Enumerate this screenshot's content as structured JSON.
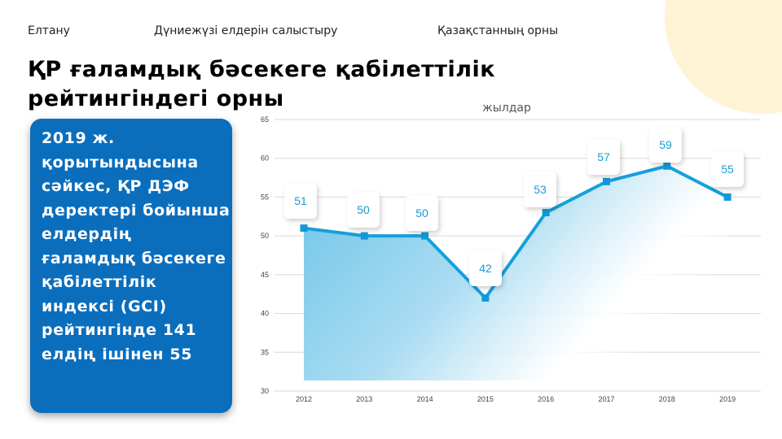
{
  "nav": {
    "items": [
      {
        "label": "Елтану"
      },
      {
        "label": "Дүниежүзі елдерін салыстыру"
      },
      {
        "label": "Қазақстанның орны"
      }
    ]
  },
  "title": "ҚР ғаламдық бәсекеге қабілеттілік рейтингіндегі орны",
  "callout": {
    "text": "2019 ж. қорытындысына сәйкес, ҚР ДЭФ деректері бойынша елдердің ғаламдық бәсекеге қабілеттілік индексі (GCI) рейтингінде 141 елдің ішінен 55"
  },
  "colors": {
    "accent": "#1a9bd1",
    "line": "#14a0dc",
    "callout_bg": "#0a6ebd",
    "deco": "#fff3d6"
  },
  "chart_data": {
    "type": "area",
    "title": "жылдар",
    "xlabel": "",
    "ylabel": "",
    "categories": [
      "2012",
      "2013",
      "2014",
      "2015",
      "2016",
      "2017",
      "2018",
      "2019"
    ],
    "values": [
      51,
      50,
      50,
      42,
      53,
      57,
      59,
      55
    ],
    "y_ticks": [
      30,
      35,
      40,
      45,
      50,
      55,
      60,
      65
    ],
    "ylim": [
      30,
      65
    ],
    "grid": true,
    "legend": "none",
    "data_labels": true
  }
}
